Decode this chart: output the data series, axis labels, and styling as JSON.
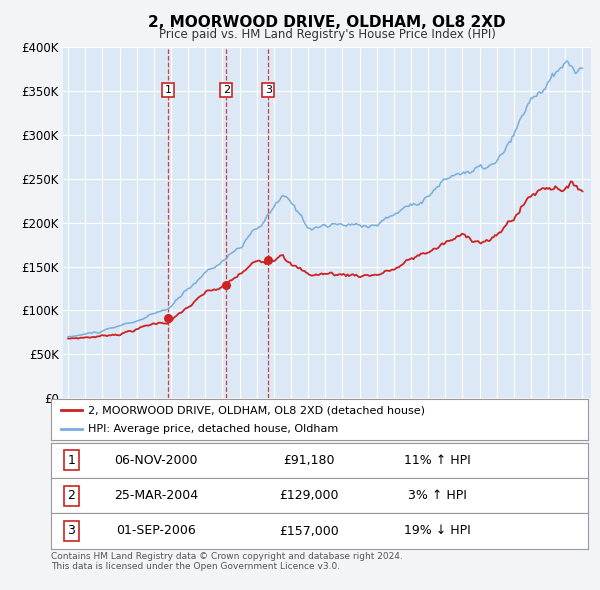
{
  "title": "2, MOORWOOD DRIVE, OLDHAM, OL8 2XD",
  "subtitle": "Price paid vs. HM Land Registry's House Price Index (HPI)",
  "background_color": "#f2f4f8",
  "plot_bg_color": "#dce8f5",
  "grid_color": "#ffffff",
  "ylim": [
    0,
    400000
  ],
  "yticks": [
    0,
    50000,
    100000,
    150000,
    200000,
    250000,
    300000,
    350000,
    400000
  ],
  "ytick_labels": [
    "£0",
    "£50K",
    "£100K",
    "£150K",
    "£200K",
    "£250K",
    "£300K",
    "£350K",
    "£400K"
  ],
  "xlim_start": 1994.7,
  "xlim_end": 2025.5,
  "hpi_color": "#7aadda",
  "price_color": "#cc2222",
  "purchases": [
    {
      "num": 1,
      "date_num": 2000.85,
      "price": 91180,
      "label": "1"
    },
    {
      "num": 2,
      "date_num": 2004.23,
      "price": 129000,
      "label": "2"
    },
    {
      "num": 3,
      "date_num": 2006.67,
      "price": 157000,
      "label": "3"
    }
  ],
  "legend_line1": "2, MOORWOOD DRIVE, OLDHAM, OL8 2XD (detached house)",
  "legend_line2": "HPI: Average price, detached house, Oldham",
  "table_rows": [
    {
      "num": "1",
      "date": "06-NOV-2000",
      "price": "£91,180",
      "hpi": "11% ↑ HPI"
    },
    {
      "num": "2",
      "date": "25-MAR-2004",
      "price": "£129,000",
      "hpi": "3% ↑ HPI"
    },
    {
      "num": "3",
      "date": "01-SEP-2006",
      "price": "£157,000",
      "hpi": "19% ↓ HPI"
    }
  ],
  "footer": "Contains HM Land Registry data © Crown copyright and database right 2024.\nThis data is licensed under the Open Government Licence v3.0.",
  "hpi_segments": [
    [
      1995.0,
      70000
    ],
    [
      1996.0,
      73000
    ],
    [
      1997.0,
      76000
    ],
    [
      1998.0,
      80000
    ],
    [
      1999.0,
      86000
    ],
    [
      2000.0,
      92000
    ],
    [
      2000.85,
      98000
    ],
    [
      2001.0,
      100000
    ],
    [
      2002.0,
      118000
    ],
    [
      2003.0,
      137000
    ],
    [
      2004.0,
      152000
    ],
    [
      2004.23,
      155000
    ],
    [
      2005.0,
      168000
    ],
    [
      2006.0,
      183000
    ],
    [
      2006.67,
      195000
    ],
    [
      2007.0,
      205000
    ],
    [
      2007.5,
      215000
    ],
    [
      2008.0,
      205000
    ],
    [
      2009.0,
      182000
    ],
    [
      2010.0,
      185000
    ],
    [
      2011.0,
      183000
    ],
    [
      2012.0,
      182000
    ],
    [
      2013.0,
      186000
    ],
    [
      2014.0,
      196000
    ],
    [
      2015.0,
      208000
    ],
    [
      2016.0,
      222000
    ],
    [
      2017.0,
      238000
    ],
    [
      2018.0,
      248000
    ],
    [
      2019.0,
      248000
    ],
    [
      2020.0,
      252000
    ],
    [
      2021.0,
      275000
    ],
    [
      2022.0,
      308000
    ],
    [
      2023.0,
      328000
    ],
    [
      2024.0,
      338000
    ],
    [
      2025.0,
      332000
    ]
  ],
  "price_segments": [
    [
      1995.0,
      68000
    ],
    [
      1996.0,
      70000
    ],
    [
      1997.0,
      72000
    ],
    [
      1998.0,
      76000
    ],
    [
      1999.0,
      82000
    ],
    [
      2000.0,
      88000
    ],
    [
      2000.85,
      91180
    ],
    [
      2001.0,
      93000
    ],
    [
      2002.0,
      108000
    ],
    [
      2003.0,
      122000
    ],
    [
      2004.0,
      127000
    ],
    [
      2004.23,
      129000
    ],
    [
      2005.0,
      140000
    ],
    [
      2006.0,
      153000
    ],
    [
      2006.67,
      157000
    ],
    [
      2007.0,
      162000
    ],
    [
      2007.5,
      175000
    ],
    [
      2008.0,
      162000
    ],
    [
      2009.0,
      147000
    ],
    [
      2010.0,
      149000
    ],
    [
      2011.0,
      148000
    ],
    [
      2012.0,
      149000
    ],
    [
      2013.0,
      152000
    ],
    [
      2014.0,
      158000
    ],
    [
      2015.0,
      168000
    ],
    [
      2016.0,
      178000
    ],
    [
      2017.0,
      188000
    ],
    [
      2018.0,
      194000
    ],
    [
      2019.0,
      193000
    ],
    [
      2020.0,
      196000
    ],
    [
      2021.0,
      220000
    ],
    [
      2022.0,
      248000
    ],
    [
      2023.0,
      262000
    ],
    [
      2024.0,
      268000
    ],
    [
      2025.0,
      265000
    ]
  ]
}
